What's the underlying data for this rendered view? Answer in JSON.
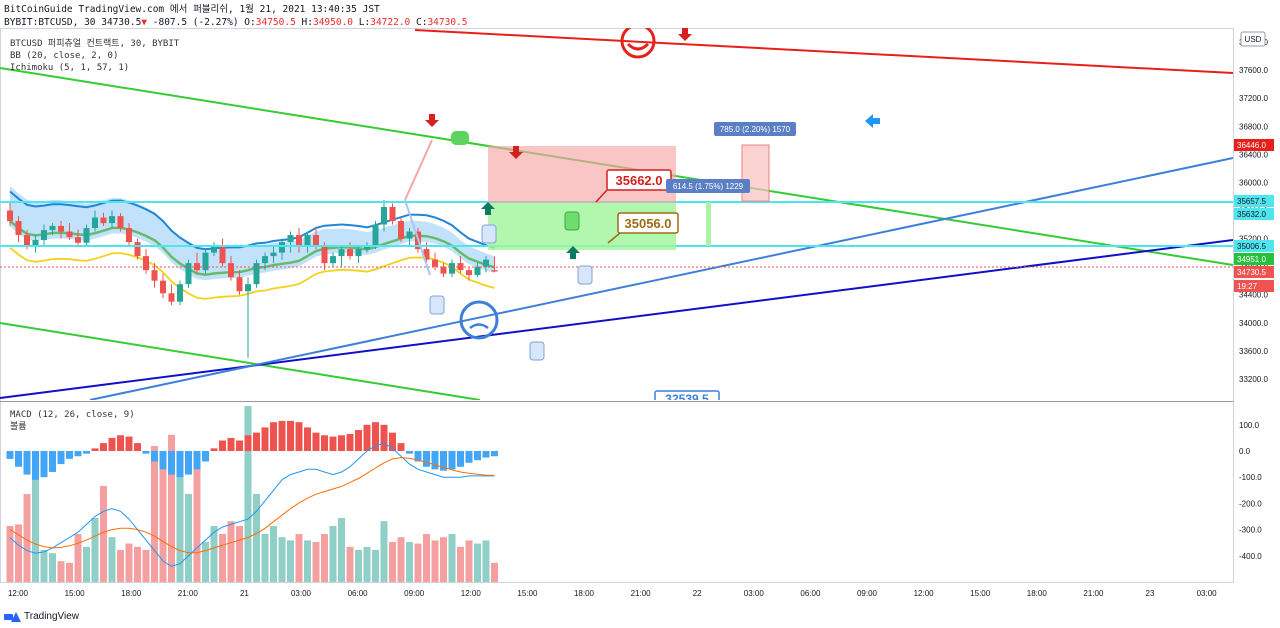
{
  "header": {
    "line1": "BitCoinGuide TradingView.com 에서 퍼블리쉬, 1월 21, 2021 13:40:35 JST",
    "symbol": "BYBIT:BTCUSD, 30",
    "price": "34730.5",
    "change": "-807.5 (-2.27%)",
    "o_label": "O:",
    "o_value": "34750.5",
    "h_label": "H:",
    "h_value": "34950.0",
    "l_label": "L:",
    "l_value": "34722.0",
    "c_label": "C:",
    "c_value": "34730.5"
  },
  "legend": {
    "title": "BTCUSD 퍼피츄얼 컨트랙트, 30, BYBIT",
    "bb": "BB (20, close, 2, 0)",
    "ichimoku": "Ichimoku (5, 1, 57, 1)"
  },
  "macd_legend": {
    "macd": "MACD (12, 26, close, 9)",
    "volume": "볼륨"
  },
  "footer": {
    "brand": "TradingView"
  },
  "colors": {
    "up": "#26a69a",
    "down": "#ef5350",
    "bb_upper": "#2185d9",
    "bb_basis": "#66bb6a",
    "bb_lower": "#f2d21c",
    "cloud": "#90caf9",
    "red_line": "#e8201a",
    "green_line": "#33cc33",
    "blue_line": "#1010c8",
    "lightblue_line": "#3d7fdb",
    "cyan_line": "#4ee5ef"
  },
  "chart_data": [
    {
      "type": "candlestick",
      "title": "BTCUSD 퍼피츄얼 컨트랙트, 30, BYBIT",
      "currency": "USD",
      "ylim": [
        32900,
        38200
      ],
      "y_ticks": [
        33200,
        33600,
        34000,
        34400,
        34800,
        35200,
        35600,
        36000,
        36400,
        36800,
        37200,
        37600,
        38000
      ],
      "x_ticks": [
        "12:00",
        "15:00",
        "18:00",
        "21:00",
        "21",
        "03:00",
        "06:00",
        "09:00",
        "12:00",
        "15:00",
        "18:00",
        "21:00",
        "22",
        "03:00",
        "06:00",
        "09:00",
        "12:00",
        "15:00",
        "18:00",
        "21:00",
        "23",
        "03:00"
      ],
      "price_labels": [
        {
          "value": "36446.0",
          "color": "#e8201a"
        },
        {
          "value": "35657.5",
          "color": "#4ee5ef"
        },
        {
          "value": "35632.0",
          "color": "#4ee5ef"
        },
        {
          "value": "35006.5",
          "color": "#4ee5ef"
        },
        {
          "value": "34951.0",
          "color": "#26c13a"
        },
        {
          "value": "34730.5",
          "color": "#ef5350"
        },
        {
          "value": "19:27",
          "color": "#ef5350"
        }
      ],
      "annotations": [
        "35662.0",
        "35056.0",
        "614.5 (1.75%) 1229",
        "785.0 (2.20%) 1570",
        "32539.5"
      ],
      "candles": [
        [
          35600,
          35730,
          35380,
          35450
        ],
        [
          35450,
          35520,
          35150,
          35250
        ],
        [
          35250,
          35320,
          35050,
          35100
        ],
        [
          35100,
          35250,
          35000,
          35180
        ],
        [
          35180,
          35400,
          35100,
          35320
        ],
        [
          35320,
          35420,
          35250,
          35380
        ],
        [
          35380,
          35450,
          35200,
          35300
        ],
        [
          35300,
          35420,
          35180,
          35220
        ],
        [
          35220,
          35330,
          35100,
          35140
        ],
        [
          35140,
          35400,
          35100,
          35350
        ],
        [
          35350,
          35600,
          35300,
          35500
        ],
        [
          35500,
          35570,
          35380,
          35420
        ],
        [
          35420,
          35600,
          35350,
          35520
        ],
        [
          35520,
          35560,
          35300,
          35350
        ],
        [
          35350,
          35420,
          35100,
          35150
        ],
        [
          35150,
          35200,
          34900,
          34950
        ],
        [
          34950,
          35050,
          34700,
          34750
        ],
        [
          34750,
          34850,
          34500,
          34600
        ],
        [
          34600,
          34700,
          34350,
          34420
        ],
        [
          34420,
          34550,
          34250,
          34300
        ],
        [
          34300,
          34600,
          34250,
          34550
        ],
        [
          34550,
          34900,
          34500,
          34850
        ],
        [
          34850,
          35000,
          34700,
          34750
        ],
        [
          34750,
          35050,
          34700,
          35000
        ],
        [
          35000,
          35150,
          34950,
          35100
        ],
        [
          35100,
          35200,
          34800,
          34850
        ],
        [
          34850,
          34950,
          34600,
          34650
        ],
        [
          34650,
          34750,
          34400,
          34450
        ],
        [
          34450,
          34650,
          33500,
          34550
        ],
        [
          34550,
          34900,
          34500,
          34850
        ],
        [
          34850,
          35000,
          34750,
          34950
        ],
        [
          34950,
          35100,
          34850,
          35000
        ],
        [
          35000,
          35200,
          34900,
          35150
        ],
        [
          35150,
          35300,
          35000,
          35250
        ],
        [
          35250,
          35350,
          35000,
          35100
        ],
        [
          35100,
          35300,
          35000,
          35250
        ],
        [
          35250,
          35350,
          35050,
          35100
        ],
        [
          35100,
          35150,
          34750,
          34850
        ],
        [
          34850,
          35000,
          34800,
          34950
        ],
        [
          34950,
          35100,
          34800,
          35050
        ],
        [
          35050,
          35150,
          34900,
          34950
        ],
        [
          34950,
          35100,
          34850,
          35050
        ],
        [
          35050,
          35150,
          35000,
          35100
        ],
        [
          35100,
          35450,
          35050,
          35400
        ],
        [
          35400,
          35750,
          35300,
          35650
        ],
        [
          35650,
          35700,
          35400,
          35450
        ],
        [
          35450,
          35500,
          35150,
          35200
        ],
        [
          35200,
          35350,
          35100,
          35300
        ],
        [
          35300,
          35350,
          35000,
          35050
        ],
        [
          35050,
          35150,
          34850,
          34900
        ],
        [
          34900,
          35000,
          34750,
          34800
        ],
        [
          34800,
          34850,
          34650,
          34700
        ],
        [
          34700,
          34900,
          34650,
          34850
        ],
        [
          34850,
          34950,
          34700,
          34750
        ],
        [
          34750,
          34800,
          34600,
          34680
        ],
        [
          34680,
          34850,
          34650,
          34800
        ],
        [
          34800,
          34950,
          34720,
          34900
        ],
        [
          34750,
          34950,
          34722,
          34730
        ]
      ]
    },
    {
      "type": "bar",
      "title": "MACD (12, 26, close, 9)",
      "ylim": [
        -530,
        170
      ],
      "y_ticks": [
        100,
        0,
        -100,
        -200,
        -300,
        -400
      ],
      "histogram": [
        -30,
        -60,
        -90,
        -110,
        -100,
        -80,
        -50,
        -30,
        -20,
        -10,
        10,
        30,
        50,
        60,
        55,
        30,
        -10,
        -40,
        -70,
        -90,
        -100,
        -90,
        -70,
        -40,
        10,
        40,
        50,
        40,
        60,
        70,
        90,
        110,
        115,
        115,
        110,
        90,
        70,
        60,
        55,
        60,
        65,
        80,
        100,
        110,
        100,
        70,
        30,
        -10,
        -40,
        -60,
        -70,
        -75,
        -70,
        -60,
        -45,
        -35,
        -25,
        -20
      ],
      "macd_line": [
        -330,
        -360,
        -380,
        -390,
        -385,
        -370,
        -350,
        -330,
        -310,
        -280,
        -250,
        -230,
        -220,
        -230,
        -260,
        -300,
        -340,
        -380,
        -420,
        -440,
        -430,
        -400,
        -370,
        -340,
        -310,
        -290,
        -280,
        -270,
        -260,
        -230,
        -190,
        -150,
        -110,
        -90,
        -80,
        -70,
        -70,
        -80,
        -90,
        -80,
        -60,
        -30,
        0,
        20,
        30,
        10,
        -20,
        -50,
        -70,
        -80,
        -90,
        -100,
        -100,
        -100,
        -95,
        -95,
        -95,
        -95
      ],
      "signal_line": [
        -300,
        -320,
        -340,
        -355,
        -365,
        -370,
        -368,
        -362,
        -352,
        -340,
        -325,
        -310,
        -300,
        -295,
        -295,
        -300,
        -310,
        -325,
        -345,
        -365,
        -380,
        -388,
        -388,
        -380,
        -370,
        -360,
        -350,
        -340,
        -330,
        -315,
        -295,
        -270,
        -245,
        -220,
        -198,
        -180,
        -165,
        -155,
        -145,
        -135,
        -120,
        -105,
        -85,
        -65,
        -45,
        -30,
        -25,
        -28,
        -35,
        -43,
        -53,
        -63,
        -72,
        -80,
        -85,
        -89,
        -92,
        -93
      ],
      "volume": [
        0.35,
        0.36,
        0.55,
        0.7,
        0.2,
        0.18,
        0.13,
        0.12,
        0.3,
        0.22,
        0.4,
        0.6,
        0.28,
        0.2,
        0.24,
        0.22,
        0.2,
        0.85,
        0.78,
        0.92,
        0.72,
        0.55,
        0.75,
        0.25,
        0.35,
        0.3,
        0.38,
        0.35,
        1.1,
        0.55,
        0.3,
        0.35,
        0.28,
        0.26,
        0.3,
        0.26,
        0.25,
        0.3,
        0.35,
        0.4,
        0.22,
        0.2,
        0.22,
        0.2,
        0.38,
        0.25,
        0.28,
        0.25,
        0.24,
        0.3,
        0.26,
        0.28,
        0.3,
        0.22,
        0.26,
        0.24,
        0.26,
        0.12
      ]
    }
  ]
}
